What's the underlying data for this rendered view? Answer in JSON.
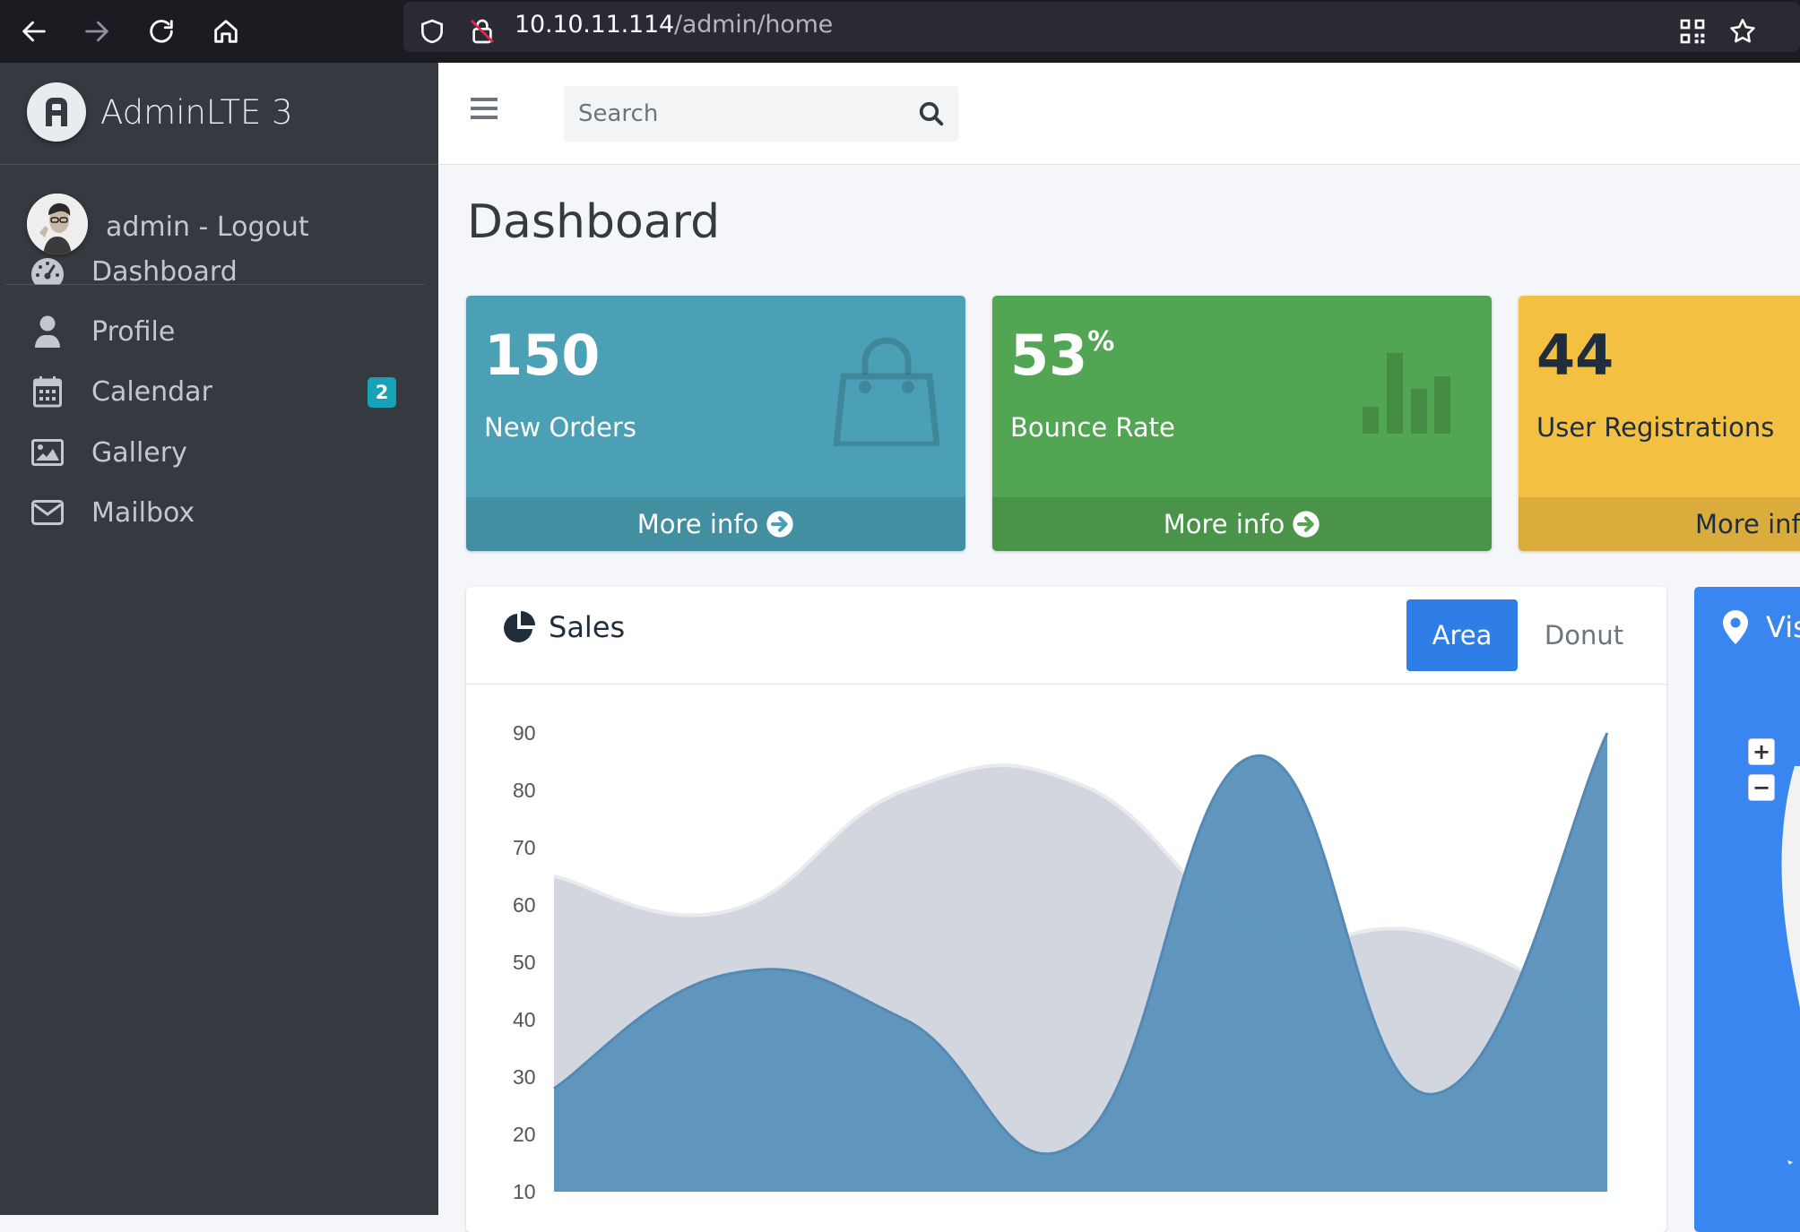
{
  "browser": {
    "url_host": "10.10.11.114",
    "url_path": "/admin/home"
  },
  "sidebar": {
    "brand": "AdminLTE 3",
    "user": "admin - Logout",
    "items": [
      {
        "label": "Dashboard",
        "icon": "tachometer-icon"
      },
      {
        "label": "Profile",
        "icon": "user-icon"
      },
      {
        "label": "Calendar",
        "icon": "calendar-icon",
        "badge": "2"
      },
      {
        "label": "Gallery",
        "icon": "image-icon"
      },
      {
        "label": "Mailbox",
        "icon": "envelope-icon"
      }
    ]
  },
  "navbar": {
    "search_placeholder": "Search"
  },
  "page": {
    "title": "Dashboard"
  },
  "boxes": [
    {
      "number": "150",
      "suffix": "",
      "label": "New Orders",
      "footer": "More info",
      "color": "#4ba0b5"
    },
    {
      "number": "53",
      "suffix": "%",
      "label": "Bounce Rate",
      "footer": "More info",
      "color": "#52a552"
    },
    {
      "number": "44",
      "suffix": "",
      "label": "User Registrations",
      "footer": "More info",
      "color": "#f3c042"
    }
  ],
  "sales_card": {
    "title": "Sales",
    "tabs": [
      "Area",
      "Donut"
    ],
    "active_tab": "Area"
  },
  "map_card": {
    "title": "Visitors"
  },
  "chart_data": {
    "type": "area",
    "title": "",
    "xlabel": "",
    "ylabel": "",
    "ylim": [
      10,
      90
    ],
    "yticks": [
      90,
      80,
      70,
      60,
      50,
      40,
      30,
      20,
      10
    ],
    "x": [
      0,
      1,
      2,
      3,
      4,
      5,
      6
    ],
    "series": [
      {
        "color": "#d2d6de",
        "values": [
          65,
          59,
          80,
          81,
          56,
          55,
          40
        ]
      },
      {
        "color": "#5b93bc",
        "values": [
          28,
          48,
          40,
          19,
          86,
          27,
          90
        ]
      }
    ]
  }
}
